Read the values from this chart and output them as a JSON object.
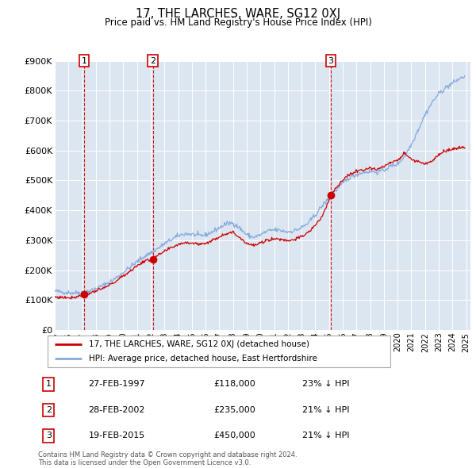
{
  "title": "17, THE LARCHES, WARE, SG12 0XJ",
  "subtitle": "Price paid vs. HM Land Registry's House Price Index (HPI)",
  "ylim": [
    0,
    900000
  ],
  "yticks": [
    0,
    100000,
    200000,
    300000,
    400000,
    500000,
    600000,
    700000,
    800000,
    900000
  ],
  "ytick_labels": [
    "£0",
    "£100K",
    "£200K",
    "£300K",
    "£400K",
    "£500K",
    "£600K",
    "£700K",
    "£800K",
    "£900K"
  ],
  "xlim_start": 1995.0,
  "xlim_end": 2025.3,
  "sale_dates_num": [
    1997.1479,
    2002.1479,
    2015.1315
  ],
  "sale_prices": [
    118000,
    235000,
    450000
  ],
  "sale_labels": [
    "1",
    "2",
    "3"
  ],
  "sale_info": [
    {
      "num": "1",
      "date": "27-FEB-1997",
      "price": "£118,000",
      "vs": "23% ↓ HPI"
    },
    {
      "num": "2",
      "date": "28-FEB-2002",
      "price": "£235,000",
      "vs": "21% ↓ HPI"
    },
    {
      "num": "3",
      "date": "19-FEB-2015",
      "price": "£450,000",
      "vs": "21% ↓ HPI"
    }
  ],
  "legend_property": "17, THE LARCHES, WARE, SG12 0XJ (detached house)",
  "legend_hpi": "HPI: Average price, detached house, East Hertfordshire",
  "footer": "Contains HM Land Registry data © Crown copyright and database right 2024.\nThis data is licensed under the Open Government Licence v3.0.",
  "property_color": "#cc0000",
  "hpi_color": "#88aadd",
  "bg_color": "#dce6f1",
  "dashed_color": "#cc0000",
  "hpi_anchors_x": [
    1995.0,
    1995.5,
    1996.0,
    1996.5,
    1997.0,
    1997.5,
    1998.0,
    1998.5,
    1999.0,
    1999.5,
    2000.0,
    2000.5,
    2001.0,
    2001.5,
    2002.0,
    2002.5,
    2003.0,
    2003.5,
    2004.0,
    2004.5,
    2005.0,
    2005.5,
    2006.0,
    2006.5,
    2007.0,
    2007.5,
    2008.0,
    2008.5,
    2009.0,
    2009.5,
    2010.0,
    2010.5,
    2011.0,
    2011.5,
    2012.0,
    2012.5,
    2013.0,
    2013.5,
    2014.0,
    2014.5,
    2015.0,
    2015.5,
    2016.0,
    2016.5,
    2017.0,
    2017.5,
    2018.0,
    2018.5,
    2019.0,
    2019.5,
    2020.0,
    2020.5,
    2021.0,
    2021.5,
    2022.0,
    2022.5,
    2023.0,
    2023.5,
    2024.0,
    2024.5,
    2024.9
  ],
  "hpi_anchors_y": [
    130000,
    127000,
    125000,
    124000,
    126000,
    130000,
    138000,
    148000,
    160000,
    175000,
    193000,
    210000,
    228000,
    245000,
    258000,
    272000,
    288000,
    302000,
    315000,
    322000,
    320000,
    315000,
    318000,
    328000,
    342000,
    355000,
    358000,
    340000,
    318000,
    310000,
    318000,
    330000,
    335000,
    332000,
    328000,
    332000,
    342000,
    358000,
    385000,
    415000,
    440000,
    468000,
    490000,
    510000,
    520000,
    528000,
    530000,
    528000,
    535000,
    548000,
    555000,
    580000,
    620000,
    670000,
    720000,
    760000,
    790000,
    810000,
    825000,
    840000,
    848000
  ],
  "prop_anchors_x": [
    1995.0,
    1995.5,
    1996.0,
    1996.5,
    1997.1479,
    1997.5,
    1998.0,
    1998.5,
    1999.0,
    1999.5,
    2000.0,
    2000.5,
    2001.0,
    2001.5,
    2002.1479,
    2002.5,
    2003.0,
    2003.5,
    2004.0,
    2004.5,
    2005.0,
    2005.5,
    2006.0,
    2006.5,
    2007.0,
    2007.5,
    2008.0,
    2008.5,
    2009.0,
    2009.5,
    2010.0,
    2010.5,
    2011.0,
    2011.5,
    2012.0,
    2012.5,
    2013.0,
    2013.5,
    2014.0,
    2014.5,
    2015.1315,
    2015.5,
    2016.0,
    2016.5,
    2017.0,
    2017.5,
    2018.0,
    2018.5,
    2019.0,
    2019.5,
    2020.0,
    2020.5,
    2021.0,
    2021.5,
    2022.0,
    2022.5,
    2023.0,
    2023.5,
    2024.0,
    2024.5,
    2024.9
  ],
  "prop_anchors_y": [
    110000,
    109000,
    108000,
    110000,
    118000,
    122000,
    130000,
    138000,
    150000,
    164000,
    181000,
    197000,
    214000,
    230000,
    235000,
    248000,
    262000,
    275000,
    286000,
    293000,
    291000,
    287000,
    290000,
    299000,
    312000,
    323000,
    326000,
    309000,
    290000,
    282000,
    290000,
    301000,
    305000,
    303000,
    299000,
    303000,
    312000,
    326000,
    351000,
    378000,
    450000,
    476000,
    500000,
    520000,
    530000,
    538000,
    540000,
    538000,
    546000,
    560000,
    566000,
    592000,
    571000,
    563000,
    555000,
    565000,
    587000,
    598000,
    605000,
    608000,
    610000
  ]
}
